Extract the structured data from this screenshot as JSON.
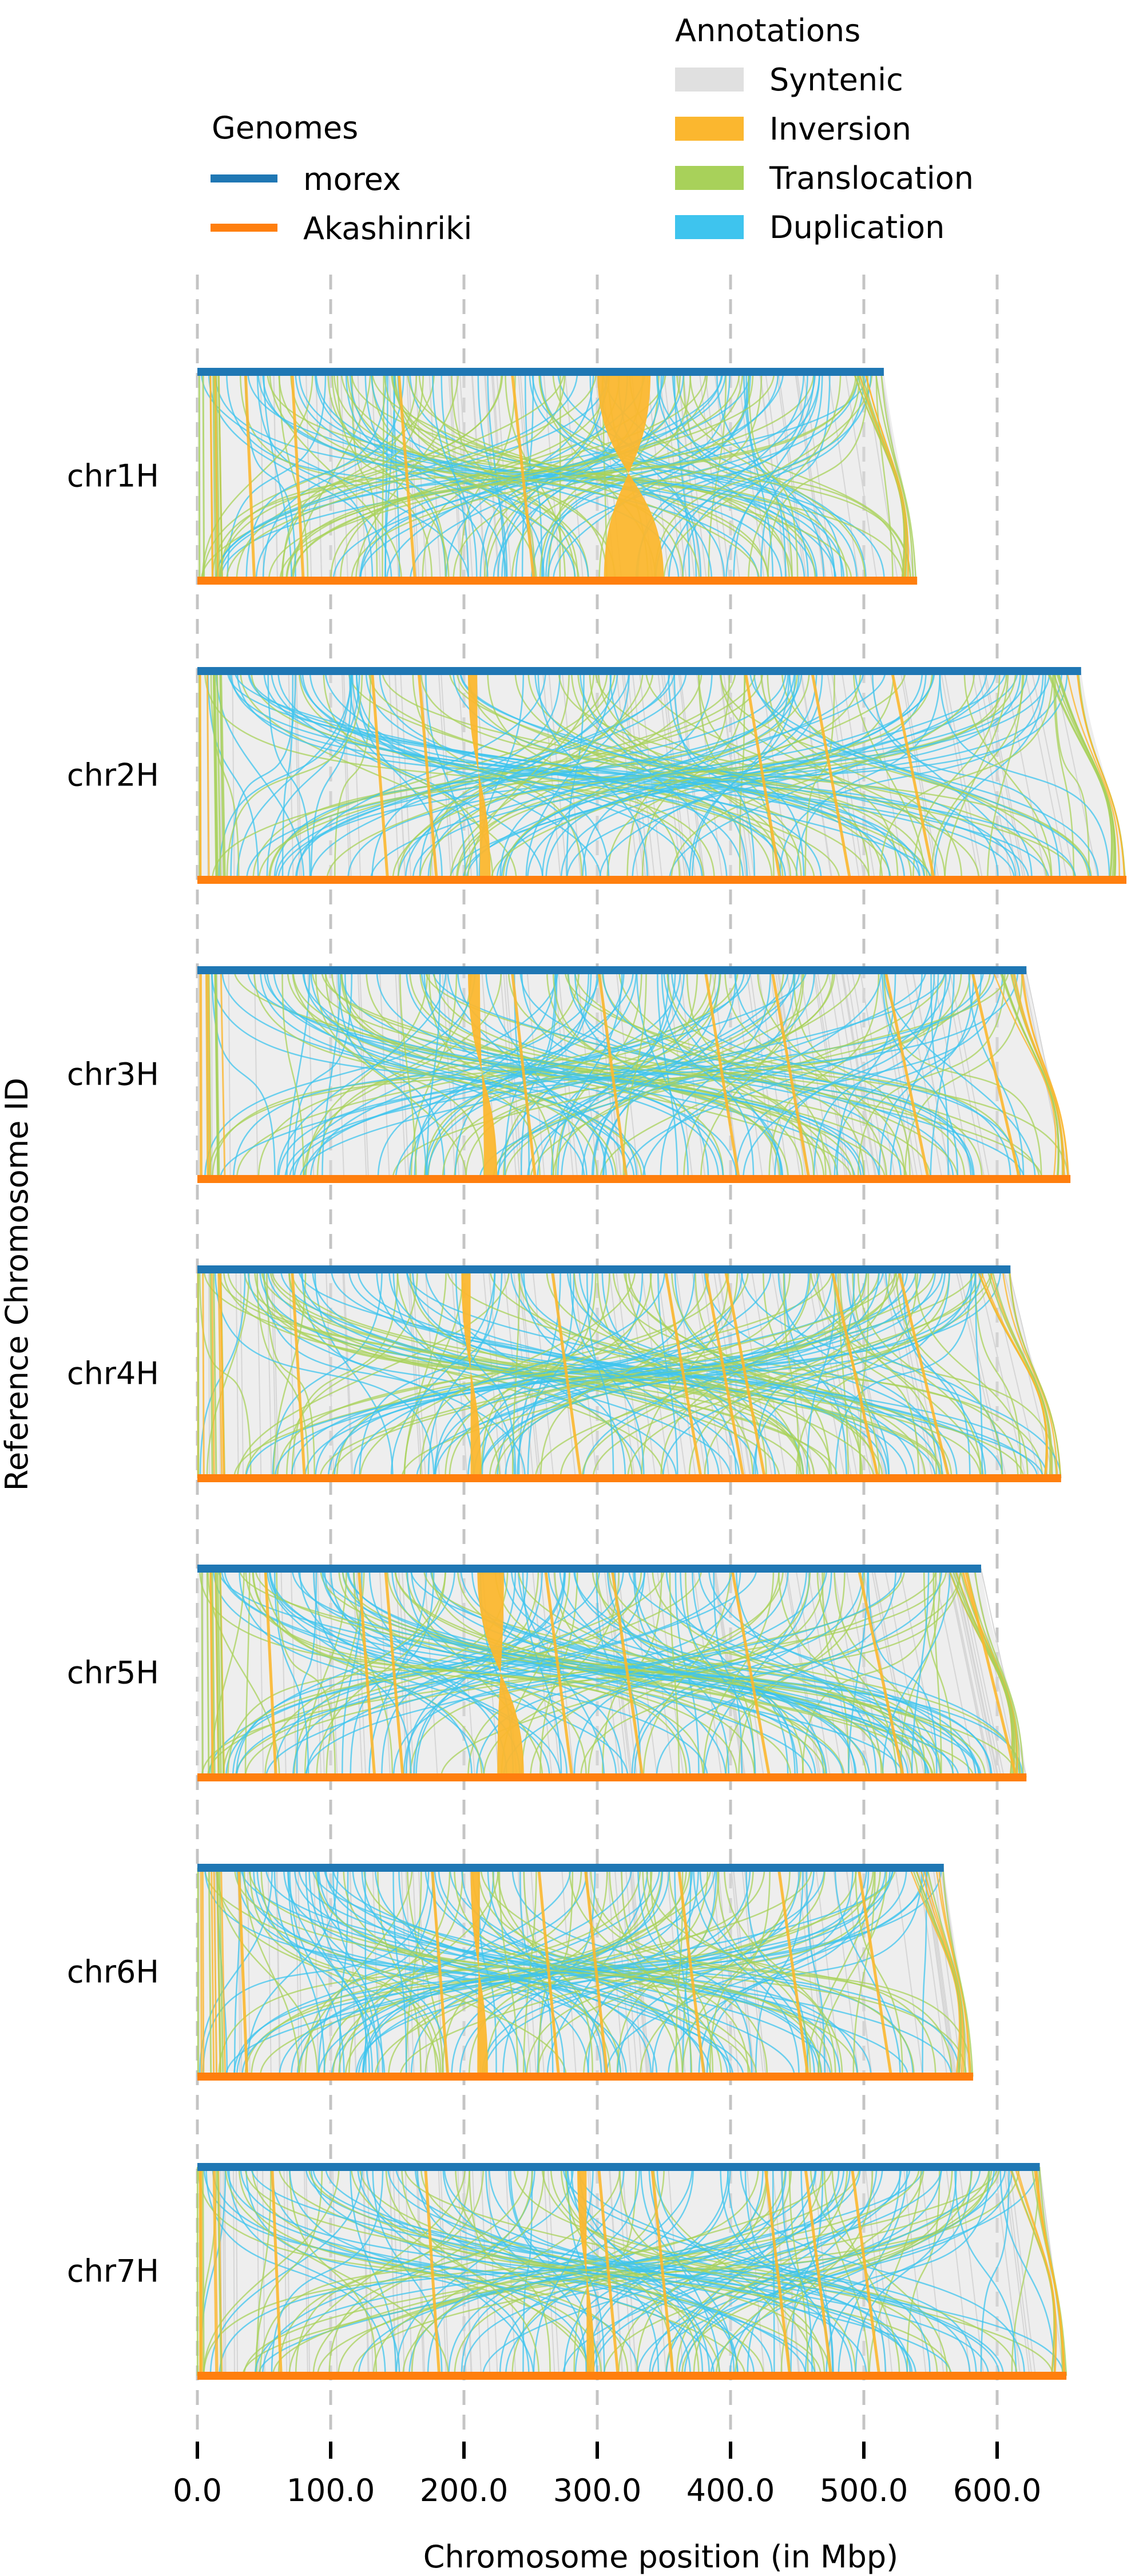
{
  "chart_data": {
    "type": "synteny",
    "xlabel": "Chromosome position (in Mbp)",
    "ylabel": "Reference Chromosome ID",
    "xlim": [
      0,
      700
    ],
    "xticks": [
      0,
      100,
      200,
      300,
      400,
      500,
      600
    ],
    "xtick_labels": [
      "0.0",
      "100.0",
      "200.0",
      "300.0",
      "400.0",
      "500.0",
      "600.0"
    ],
    "grid": "vertical dashed",
    "legends": [
      {
        "title": "Genomes",
        "placement": "top-left",
        "entries": [
          {
            "label": "morex",
            "color": "#1f77b4",
            "kind": "line"
          },
          {
            "label": "Akashinriki",
            "color": "#ff7f0e",
            "kind": "line"
          }
        ]
      },
      {
        "title": "Annotations",
        "placement": "top-right",
        "entries": [
          {
            "label": "Syntenic",
            "color": "#e0e0e0",
            "kind": "patch"
          },
          {
            "label": "Inversion",
            "color": "#fbb72f",
            "kind": "patch"
          },
          {
            "label": "Translocation",
            "color": "#a8d15a",
            "kind": "patch"
          },
          {
            "label": "Duplication",
            "color": "#3ec4ee",
            "kind": "patch"
          }
        ]
      }
    ],
    "chromosomes": [
      {
        "id": "chr1H",
        "ref_length": 515,
        "qry_length": 540,
        "inversions": [
          {
            "ref": [
              300,
              340
            ],
            "qry": [
              305,
              350
            ]
          }
        ],
        "thin_inversions_ref": [
          35,
          70,
          150,
          235
        ]
      },
      {
        "id": "chr2H",
        "ref_length": 663,
        "qry_length": 697,
        "inversions": [
          {
            "ref": [
              203,
              210
            ],
            "qry": [
              212,
              220
            ]
          }
        ],
        "thin_inversions_ref": [
          130,
          165,
          410,
          460,
          520
        ]
      },
      {
        "id": "chr3H",
        "ref_length": 622,
        "qry_length": 655,
        "inversions": [
          {
            "ref": [
              203,
              212
            ],
            "qry": [
              215,
              225
            ]
          }
        ],
        "thin_inversions_ref": [
          235,
          300,
          380,
          430,
          515,
          580
        ]
      },
      {
        "id": "chr4H",
        "ref_length": 610,
        "qry_length": 648,
        "inversions": [
          {
            "ref": [
              198,
              205
            ],
            "qry": [
              205,
              213
            ]
          }
        ],
        "thin_inversions_ref": [
          70,
          265,
          350,
          380,
          395,
          475,
          525
        ]
      },
      {
        "id": "chr5H",
        "ref_length": 588,
        "qry_length": 622,
        "inversions": [
          {
            "ref": [
              210,
              230
            ],
            "qry": [
              225,
              245
            ]
          }
        ],
        "thin_inversions_ref": [
          50,
          120,
          140,
          260,
          310,
          400,
          495,
          575
        ]
      },
      {
        "id": "chr6H",
        "ref_length": 560,
        "qry_length": 582,
        "inversions": [
          {
            "ref": [
              205,
              212
            ],
            "qry": [
              210,
              218
            ]
          }
        ],
        "thin_inversions_ref": [
          30,
          175,
          255,
          290,
          360,
          435,
          495
        ]
      },
      {
        "id": "chr7H",
        "ref_length": 632,
        "qry_length": 652,
        "inversions": [
          {
            "ref": [
              285,
              292
            ],
            "qry": [
              292,
              298
            ]
          }
        ],
        "thin_inversions_ref": [
          55,
          170,
          300,
          340,
          425,
          455,
          490
        ]
      }
    ]
  }
}
